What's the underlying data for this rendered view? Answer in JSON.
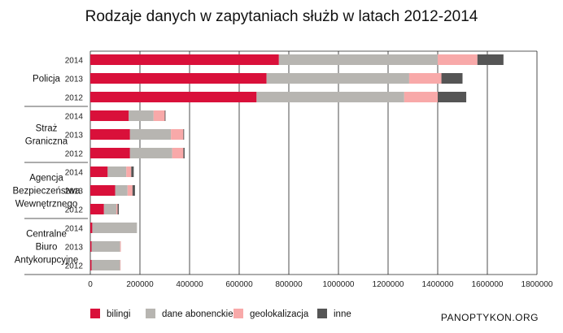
{
  "title": "Rodzaje danych w zapytaniach służb w latach 2012-2014",
  "branding": "PANOPTYKON.ORG",
  "chart_data": {
    "type": "bar",
    "orientation": "horizontal",
    "stacked": true,
    "title": "Rodzaje danych w zapytaniach służb w latach 2012-2014",
    "xlim": [
      0,
      1800000
    ],
    "xticks": [
      "0",
      "200000",
      "400000",
      "600000",
      "800000",
      "1000000",
      "1200000",
      "1400000",
      "1600000",
      "1800000"
    ],
    "grid": true,
    "legend_position": "bottom",
    "groups": [
      {
        "label": "Policja",
        "label_lines": [
          "Policja"
        ],
        "rows": [
          "2014",
          "2013",
          "2012"
        ]
      },
      {
        "label": "Straż Graniczna",
        "label_lines": [
          "Straż",
          "Graniczna"
        ],
        "rows": [
          "2014",
          "2013",
          "2012"
        ]
      },
      {
        "label": "Agencja Bezpieczeństwa Wewnętrznego",
        "label_lines": [
          "Agencja",
          "Bezpieczeństwa",
          "Wewnętrznego"
        ],
        "rows": [
          "2014",
          "2013",
          "2012"
        ]
      },
      {
        "label": "Centralne Biuro Antykorupcyjne",
        "label_lines": [
          "Centralne",
          "Biuro",
          "Antykorupcyjne"
        ],
        "rows": [
          "2014",
          "2013",
          "2012"
        ]
      }
    ],
    "series": [
      {
        "name": "bilingi",
        "color": "#d9103a",
        "values": [
          760000,
          710000,
          670000,
          155000,
          160000,
          160000,
          70000,
          100000,
          55000,
          8000,
          5000,
          5000
        ]
      },
      {
        "name": "dane abonenckie",
        "color": "#b7b5b1",
        "values": [
          640000,
          575000,
          595000,
          100000,
          165000,
          170000,
          75000,
          50000,
          50000,
          180000,
          115000,
          115000
        ]
      },
      {
        "name": "geolokalizacja",
        "color": "#f8a9a9",
        "values": [
          160000,
          130000,
          135000,
          45000,
          50000,
          45000,
          20000,
          20000,
          5000,
          0,
          3000,
          2000
        ]
      },
      {
        "name": "inne",
        "color": "#555555",
        "values": [
          105000,
          85000,
          115000,
          3000,
          3000,
          5000,
          10000,
          10000,
          5000,
          0,
          0,
          0
        ]
      }
    ]
  }
}
